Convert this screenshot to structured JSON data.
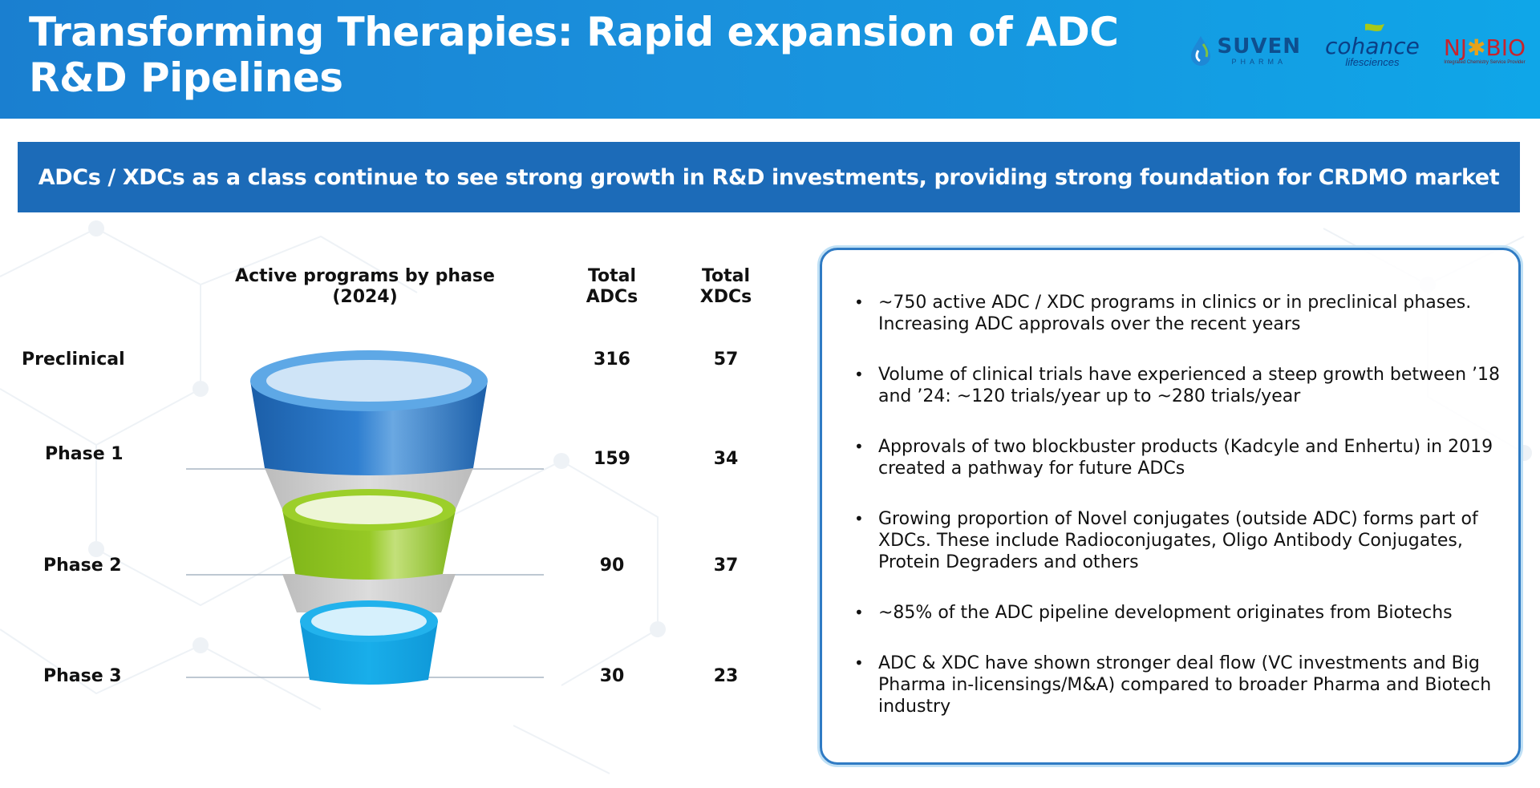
{
  "header": {
    "title": "Transforming Therapies: Rapid expansion of ADC R&D Pipelines",
    "logos": {
      "suven": {
        "name": "SUVEN",
        "sub": "PHARMA"
      },
      "cohance": {
        "name": "cohance",
        "sub": "lifesciences"
      },
      "njbio": {
        "name_left": "NJ",
        "name_right": "BIO",
        "sub": "Integrated Chemistry Service Provider"
      }
    }
  },
  "banner": {
    "text": "ADCs / XDCs as a class continue to see strong growth in R&D investments, providing strong foundation for CRDMO market"
  },
  "table": {
    "funnel_title": "Active programs by phase (2024)",
    "col_adcs": "Total ADCs",
    "col_xdcs": "Total XDCs",
    "rows": [
      {
        "phase": "Preclinical",
        "adcs": "316",
        "xdcs": "57"
      },
      {
        "phase": "Phase 1",
        "adcs": "159",
        "xdcs": "34"
      },
      {
        "phase": "Phase 2",
        "adcs": "90",
        "xdcs": "37"
      },
      {
        "phase": "Phase 3",
        "adcs": "30",
        "xdcs": "23"
      }
    ]
  },
  "colors": {
    "header_start": "#1a7fd0",
    "header_end": "#0fa6e8",
    "banner": "#1c6bb8",
    "funnel_blue": "#1f6fbf",
    "funnel_green": "#8cc21f",
    "funnel_cyan": "#16a9e8",
    "panel_border": "#2f7bc4"
  },
  "bullets": [
    "~750 active ADC / XDC programs in clinics or in preclinical phases. Increasing ADC approvals over the recent years",
    "Volume of clinical trials have experienced a steep growth between ’18 and ’24: ~120 trials/year up to ~280 trials/year",
    "Approvals of two blockbuster products (Kadcyle and Enhertu) in 2019 created a pathway for future ADCs",
    "Growing proportion of Novel conjugates (outside ADC) forms part of XDCs. These include Radioconjugates, Oligo Antibody Conjugates, Protein Degraders and others",
    "~85% of the ADC pipeline development originates from Biotechs",
    "ADC & XDC have shown stronger deal flow (VC investments and Big Pharma in-licensings/M&A) compared to broader Pharma and Biotech industry"
  ]
}
